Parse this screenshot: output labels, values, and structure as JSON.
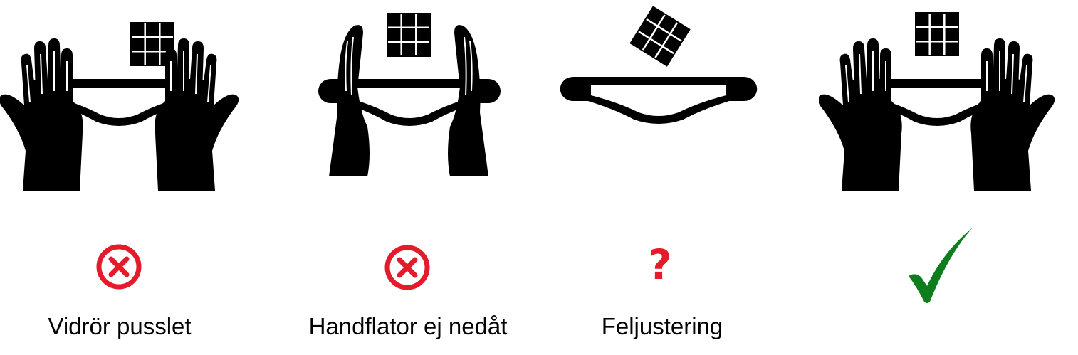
{
  "colors": {
    "wrong": "#e31b2a",
    "correct": "#0e7d1e",
    "ink": "#000000"
  },
  "panels": [
    {
      "status": "wrong",
      "status_icon": "circle-x-icon",
      "caption": "Vidrör pusslet"
    },
    {
      "status": "wrong",
      "status_icon": "circle-x-icon",
      "caption": "Handflator ej nedåt"
    },
    {
      "status": "uncertain",
      "status_icon": "question-mark-icon",
      "status_text": "?",
      "caption": "Feljustering"
    },
    {
      "status": "correct",
      "status_icon": "checkmark-icon",
      "caption": ""
    }
  ]
}
